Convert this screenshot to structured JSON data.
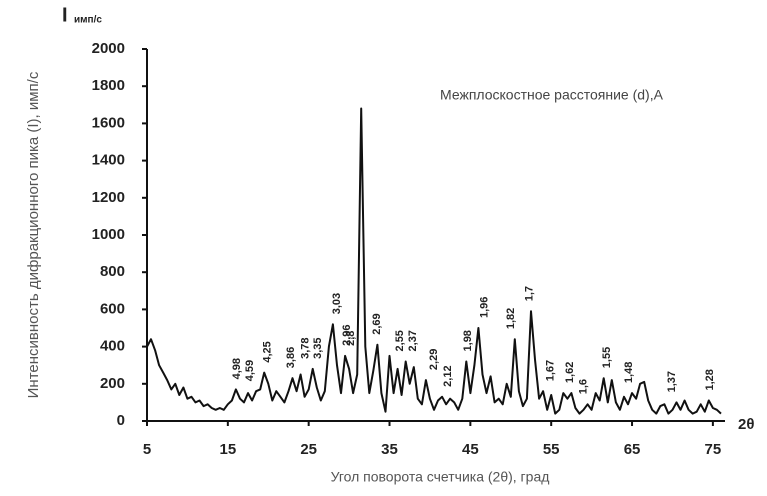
{
  "chart_data": {
    "type": "line",
    "y_unit_main": "I",
    "y_unit_sub": "имп/с",
    "ylabel": "Интенсивность дифракционного пика (I), имп/с",
    "xlabel": "Угол поворота счетчика (2θ),  град",
    "x_axis_symbol": "2θ",
    "annotation_title": "Межплоскостное расстояние (d),A",
    "xlim": [
      5,
      76.5
    ],
    "xticks": [
      5,
      15,
      25,
      35,
      45,
      55,
      65,
      75
    ],
    "ylim": [
      0,
      2000
    ],
    "yticks": [
      0,
      200,
      400,
      600,
      800,
      1000,
      1200,
      1400,
      1600,
      1800,
      2000
    ],
    "series": [
      {
        "color": "#111111",
        "x": [
          5,
          5.5,
          6,
          6.5,
          7,
          7.5,
          8,
          8.5,
          9,
          9.5,
          10,
          10.5,
          11,
          11.5,
          12,
          12.5,
          13,
          13.5,
          14,
          14.5,
          15,
          15.5,
          16,
          16.5,
          17,
          17.5,
          18,
          18.5,
          19,
          19.5,
          20,
          20.5,
          21,
          21.5,
          22,
          22.5,
          23,
          23.5,
          24,
          24.5,
          25,
          25.5,
          26,
          26.5,
          27,
          27.5,
          28,
          28.5,
          29,
          29.5,
          30,
          30.5,
          31,
          31.5,
          32,
          32.5,
          33,
          33.5,
          34,
          34.5,
          35,
          35.5,
          36,
          36.5,
          37,
          37.5,
          38,
          38.5,
          39,
          39.5,
          40,
          40.5,
          41,
          41.5,
          42,
          42.5,
          43,
          43.5,
          44,
          44.5,
          45,
          45.5,
          46,
          46.5,
          47,
          47.5,
          48,
          48.5,
          49,
          49.5,
          50,
          50.5,
          51,
          51.5,
          52,
          52.5,
          53,
          53.5,
          54,
          54.5,
          55,
          55.5,
          56,
          56.5,
          57,
          57.5,
          58,
          58.5,
          59,
          59.5,
          60,
          60.5,
          61,
          61.5,
          62,
          62.5,
          63,
          63.5,
          64,
          64.5,
          65,
          65.5,
          66,
          66.5,
          67,
          67.5,
          68,
          68.5,
          69,
          69.5,
          70,
          70.5,
          71,
          71.5,
          72,
          72.5,
          73,
          73.5,
          74,
          74.5,
          75,
          75.5,
          76
        ],
        "values": [
          400,
          440,
          380,
          300,
          260,
          220,
          170,
          200,
          140,
          180,
          120,
          130,
          100,
          110,
          80,
          90,
          70,
          60,
          70,
          60,
          90,
          110,
          170,
          120,
          100,
          150,
          110,
          160,
          170,
          260,
          200,
          110,
          160,
          130,
          100,
          160,
          230,
          160,
          250,
          130,
          170,
          280,
          180,
          110,
          160,
          400,
          520,
          300,
          150,
          350,
          280,
          150,
          250,
          1680,
          400,
          150,
          270,
          410,
          150,
          50,
          350,
          150,
          280,
          140,
          320,
          200,
          290,
          120,
          90,
          220,
          120,
          60,
          110,
          130,
          90,
          120,
          100,
          60,
          120,
          320,
          150,
          300,
          500,
          250,
          150,
          240,
          100,
          120,
          90,
          200,
          130,
          440,
          160,
          80,
          120,
          590,
          330,
          120,
          160,
          60,
          140,
          40,
          60,
          150,
          120,
          150,
          70,
          40,
          60,
          90,
          60,
          150,
          110,
          230,
          100,
          220,
          100,
          60,
          130,
          90,
          150,
          120,
          200,
          210,
          110,
          60,
          40,
          80,
          90,
          40,
          60,
          100,
          60,
          110,
          60,
          40,
          50,
          90,
          50,
          110,
          70,
          60,
          40
        ]
      }
    ],
    "annotations": [
      {
        "text": "4,98",
        "x": 16.0
      },
      {
        "text": "4,59",
        "x": 17.6
      },
      {
        "text": "4,25",
        "x": 19.8
      },
      {
        "text": "3,86",
        "x": 22.7
      },
      {
        "text": "3,78",
        "x": 24.5
      },
      {
        "text": "3,35",
        "x": 26.0
      },
      {
        "text": "3,03",
        "x": 28.4
      },
      {
        "text": "2,96",
        "x": 29.6
      },
      {
        "text": "2,8",
        "x": 30.1
      },
      {
        "text": "2,69",
        "x": 33.3
      },
      {
        "text": "2,55",
        "x": 36.2
      },
      {
        "text": "2,37",
        "x": 37.8
      },
      {
        "text": "2,29",
        "x": 40.4
      },
      {
        "text": "2,12",
        "x": 42.1
      },
      {
        "text": "1,98",
        "x": 44.6
      },
      {
        "text": "1,96",
        "x": 46.6
      },
      {
        "text": "1,82",
        "x": 49.9
      },
      {
        "text": "1,7",
        "x": 52.2
      },
      {
        "text": "1,67",
        "x": 54.8
      },
      {
        "text": "1,62",
        "x": 57.2
      },
      {
        "text": "1,6",
        "x": 58.9
      },
      {
        "text": "1,55",
        "x": 61.8
      },
      {
        "text": "1,48",
        "x": 64.5
      },
      {
        "text": "1,37",
        "x": 69.8
      },
      {
        "text": "1,28",
        "x": 74.5
      }
    ]
  }
}
